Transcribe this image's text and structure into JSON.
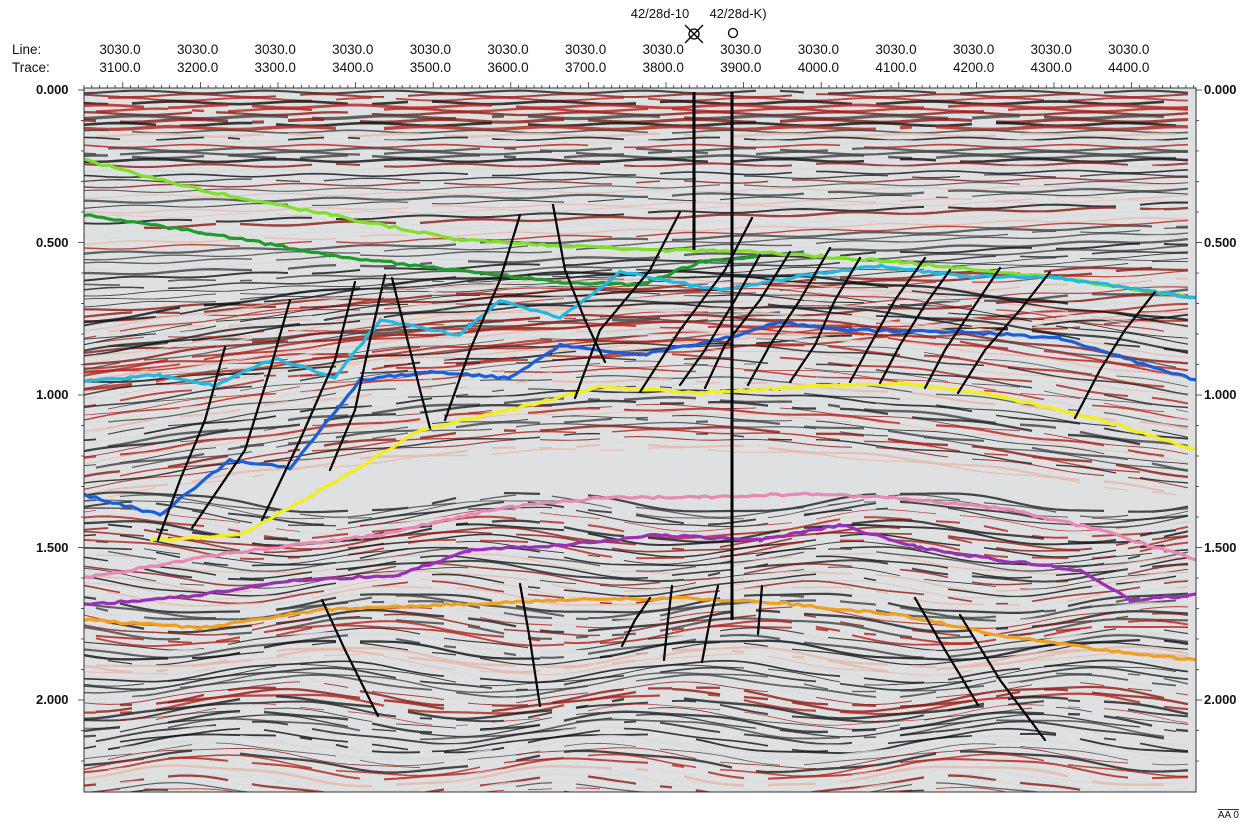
{
  "header": {
    "line_label": "Line:",
    "trace_label": "Trace:",
    "line_values": [
      "3030.0",
      "3030.0",
      "3030.0",
      "3030.0",
      "3030.0",
      "3030.0",
      "3030.0",
      "3030.0",
      "3030.0",
      "3030.0",
      "3030.0",
      "3030.0",
      "3030.0",
      "3030.0"
    ],
    "trace_values": [
      "3100.0",
      "3200.0",
      "3300.0",
      "3400.0",
      "3500.0",
      "3600.0",
      "3700.0",
      "3800.0",
      "3900.0",
      "4000.0",
      "4100.0",
      "4200.0",
      "4300.0",
      "4400.0"
    ]
  },
  "wells": [
    {
      "name": "42/28d-10",
      "symbol": "crossed-circle-icon"
    },
    {
      "name": "42/28d-K)",
      "symbol": "open-circle-icon"
    }
  ],
  "time_axis": {
    "ticks": [
      "0.000",
      "0.500",
      "1.000",
      "1.500",
      "2.000"
    ],
    "range": [
      0.0,
      2.3
    ]
  },
  "horizon_colors": {
    "light_green": "#7de02a",
    "dark_green": "#1f9b2d",
    "cyan": "#22b8e0",
    "blue": "#1a5fd8",
    "yellow": "#f2ef1a",
    "pink": "#e889b4",
    "purple": "#9a2fb8",
    "orange": "#f0a020"
  },
  "footer_tag": "AA 0"
}
